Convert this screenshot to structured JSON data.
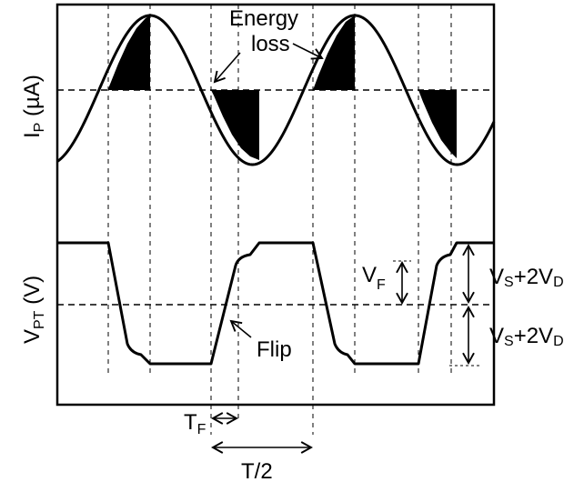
{
  "diagram": {
    "top_panel": {
      "ylabel_main": "I",
      "ylabel_sub": "P",
      "ylabel_unit": " (µA)",
      "annotation_line1": "Energy",
      "annotation_line2": "loss"
    },
    "bottom_panel": {
      "ylabel_main": "V",
      "ylabel_sub": "PT",
      "ylabel_unit": " (V)",
      "flip_label": "Flip",
      "vf_main": "V",
      "vf_sub": "F",
      "level_upper": {
        "v": "V",
        "s": "S",
        "plus": "+2V",
        "d": "D"
      },
      "level_lower": {
        "v": "V",
        "s": "S",
        "plus": "+2V",
        "d": "D"
      }
    },
    "timing": {
      "tf_main": "T",
      "tf_sub": "F",
      "half_period": "T/2"
    }
  }
}
